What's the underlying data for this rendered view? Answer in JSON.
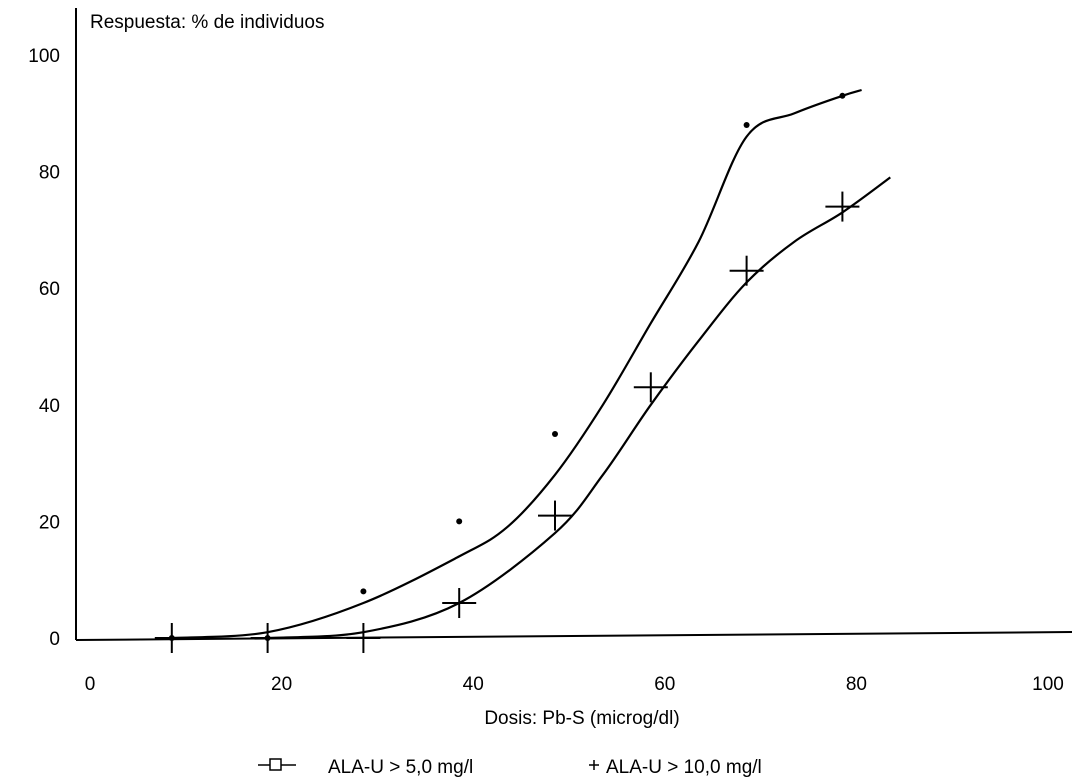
{
  "chart_data": {
    "type": "line",
    "title": "",
    "ylabel": "Respuesta: % de individuos",
    "xlabel": "Dosis: Pb-S (microg/dl)",
    "xlim": [
      0,
      100
    ],
    "ylim": [
      0,
      100
    ],
    "x_ticks": [
      "0",
      "20",
      "40",
      "60",
      "80",
      "100"
    ],
    "y_ticks": [
      "0",
      "20",
      "40",
      "60",
      "80",
      "100"
    ],
    "grid": false,
    "legend_position": "bottom",
    "series": [
      {
        "name": "ALA-U > 5,0 mg/l",
        "marker": "dot",
        "points": [
          [
            10,
            0
          ],
          [
            20,
            0
          ],
          [
            30,
            8
          ],
          [
            40,
            20
          ],
          [
            50,
            35
          ],
          [
            70,
            88
          ],
          [
            80,
            93
          ]
        ],
        "curve": [
          [
            10,
            0
          ],
          [
            20,
            1
          ],
          [
            30,
            6
          ],
          [
            40,
            14
          ],
          [
            45,
            19
          ],
          [
            50,
            28
          ],
          [
            55,
            40
          ],
          [
            60,
            54
          ],
          [
            65,
            68
          ],
          [
            70,
            86
          ],
          [
            75,
            90
          ],
          [
            80,
            93
          ],
          [
            82,
            94
          ]
        ]
      },
      {
        "name": "ALA-U > 10,0 mg/l",
        "marker": "plus",
        "points": [
          [
            10,
            0
          ],
          [
            20,
            0
          ],
          [
            30,
            0
          ],
          [
            40,
            6
          ],
          [
            50,
            21
          ],
          [
            60,
            43
          ],
          [
            70,
            63
          ],
          [
            80,
            74
          ]
        ],
        "curve": [
          [
            20,
            0
          ],
          [
            30,
            1
          ],
          [
            40,
            6
          ],
          [
            50,
            18
          ],
          [
            55,
            28
          ],
          [
            60,
            40
          ],
          [
            65,
            51
          ],
          [
            70,
            61
          ],
          [
            75,
            68
          ],
          [
            80,
            73
          ],
          [
            85,
            79
          ]
        ]
      }
    ]
  }
}
